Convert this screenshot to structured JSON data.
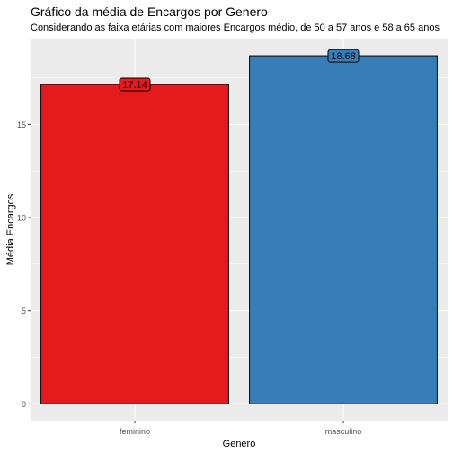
{
  "chart_data": {
    "type": "bar",
    "title": "Gráfico da média de Encargos por Genero",
    "subtitle": "Considerando as faixa etárias com maiores Encargos médio, de 50 a 57 anos e 58 a 65 anos",
    "xlabel": "Genero",
    "ylabel": "Média Encargos",
    "categories": [
      "feminino",
      "masculino"
    ],
    "values": [
      17.14,
      18.68
    ],
    "data_labels": [
      "17.14",
      "18.68"
    ],
    "bar_colors": [
      "#E41A1C",
      "#377EB8"
    ],
    "ylim": [
      -0.9,
      19.6
    ],
    "yticks": [
      0,
      5,
      10,
      15
    ],
    "ytick_labels": [
      "0",
      "5",
      "10",
      "15"
    ],
    "grid": true,
    "panel_background": "#EBEBEB",
    "legend": "none"
  }
}
